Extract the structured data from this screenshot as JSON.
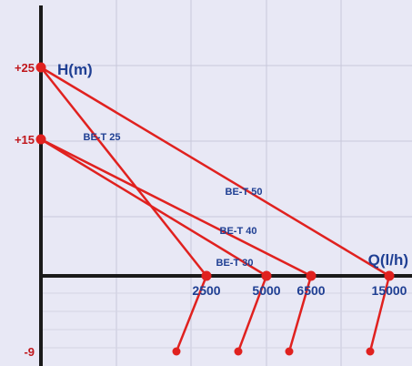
{
  "colors": {
    "background": "#e8e8f5",
    "grid_major": "#c8c8da",
    "grid_minor": "#d4d4e4",
    "axis": "#1a1a1a",
    "series": "#e0211f",
    "y_tick_text": "#c0161b",
    "axis_label_text": "#1f3f93",
    "x_tick_text": "#1f3f93",
    "series_label_text": "#1f3f93"
  },
  "chart_data": {
    "type": "line",
    "title": "",
    "xlabel": "Q(l/h)",
    "ylabel": "H(m)",
    "y_ticks": [
      {
        "value": 25,
        "label": "+25"
      },
      {
        "value": 15,
        "label": "+15"
      },
      {
        "value": -9,
        "label": "-9"
      }
    ],
    "x_ticks": [
      {
        "value": 2500,
        "label": "2500"
      },
      {
        "value": 5000,
        "label": "5000"
      },
      {
        "value": 6500,
        "label": "6500"
      },
      {
        "value": 15000,
        "label": "15000"
      }
    ],
    "series": [
      {
        "name": "BE-T 25",
        "points": [
          {
            "x": 0,
            "y": 25
          },
          {
            "x": 2500,
            "y": 0
          }
        ]
      },
      {
        "name": "BE-T 30",
        "points": [
          {
            "x": 0,
            "y": 15
          },
          {
            "x": 5000,
            "y": 0
          }
        ]
      },
      {
        "name": "BE-T 40",
        "points": [
          {
            "x": 0,
            "y": 15
          },
          {
            "x": 6500,
            "y": 0
          }
        ]
      },
      {
        "name": "BE-T 50",
        "points": [
          {
            "x": 0,
            "y": 25
          },
          {
            "x": 15000,
            "y": 0
          }
        ]
      }
    ],
    "lower_leaders": [
      {
        "x": 2500
      },
      {
        "x": 5000
      },
      {
        "x": 6500
      },
      {
        "x": 15000
      }
    ],
    "grid": true
  }
}
